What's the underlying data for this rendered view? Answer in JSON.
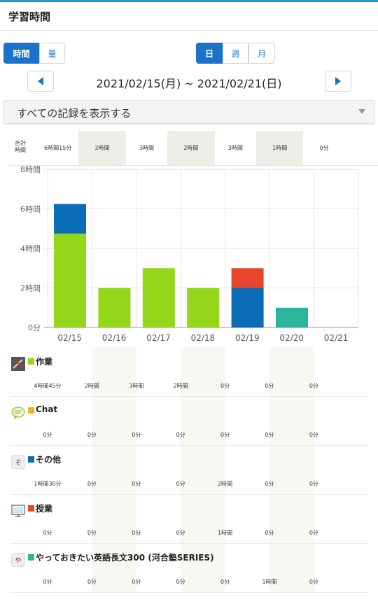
{
  "header": {
    "title": "学習時間"
  },
  "unit_toggle": {
    "time": "時間",
    "amount": "量"
  },
  "period_toggle": {
    "day": "日",
    "week": "週",
    "month": "月"
  },
  "date_range": "2021/02/15(月) ~ 2021/02/21(日)",
  "filter": {
    "label": "すべての記録を表示する"
  },
  "totals": {
    "label": "合計\n時間",
    "values": [
      "6時間15分",
      "2時間",
      "3時間",
      "2時間",
      "3時間",
      "1時間",
      "0分"
    ]
  },
  "colors": {
    "accent": "#1a73c9",
    "sagyo": "#94d619",
    "chat": "#f2b21c",
    "sonota": "#0b6cb8",
    "jugyo": "#e8452c",
    "book": "#2db59c"
  },
  "chart_data": {
    "type": "bar",
    "stacked": true,
    "categories": [
      "02/15",
      "02/16",
      "02/17",
      "02/18",
      "02/19",
      "02/20",
      "02/21"
    ],
    "ylim": [
      0,
      8
    ],
    "yticks": [
      0,
      2,
      4,
      6,
      8
    ],
    "ytick_labels": [
      "0分",
      "2時間",
      "4時間",
      "6時間",
      "8時間"
    ],
    "series": [
      {
        "name": "作業",
        "color": "#94d619",
        "values": [
          4.75,
          2,
          3,
          2,
          0,
          0,
          0
        ]
      },
      {
        "name": "Chat",
        "color": "#f2b21c",
        "values": [
          0,
          0,
          0,
          0,
          0,
          0,
          0
        ]
      },
      {
        "name": "その他",
        "color": "#0b6cb8",
        "values": [
          1.5,
          0,
          0,
          0,
          2,
          0,
          0
        ]
      },
      {
        "name": "授業",
        "color": "#e8452c",
        "values": [
          0,
          0,
          0,
          0,
          1,
          0,
          0
        ]
      },
      {
        "name": "やっておきたい英語長文300 (河合塾SERIES)",
        "color": "#2db59c",
        "values": [
          0,
          0,
          0,
          0,
          0,
          1,
          0
        ]
      }
    ]
  },
  "categories": [
    {
      "icon": "tools-icon",
      "name": "作業",
      "color": "#94d619",
      "values": [
        "4時間45分",
        "2時間",
        "3時間",
        "2時間",
        "0分",
        "0分",
        "0分"
      ]
    },
    {
      "icon": "chat-bubble-icon",
      "name": "Chat",
      "color": "#f2b21c",
      "values": [
        "0分",
        "0分",
        "0分",
        "0分",
        "0分",
        "0分",
        "0分"
      ]
    },
    {
      "icon": "letter-icon",
      "icon_text": "そ",
      "name": "その他",
      "color": "#0b6cb8",
      "values": [
        "1時間30分",
        "0分",
        "0分",
        "0分",
        "2時間",
        "0分",
        "0分"
      ]
    },
    {
      "icon": "monitor-icon",
      "name": "授業",
      "color": "#e8452c",
      "values": [
        "0分",
        "0分",
        "0分",
        "0分",
        "1時間",
        "0分",
        "0分"
      ]
    },
    {
      "icon": "letter-icon",
      "icon_text": "や",
      "name": "やっておきたい英語長文300 (河合塾SERIES)",
      "color": "#2db59c",
      "values": [
        "0分",
        "0分",
        "0分",
        "0分",
        "0分",
        "1時間",
        "0分"
      ]
    }
  ]
}
